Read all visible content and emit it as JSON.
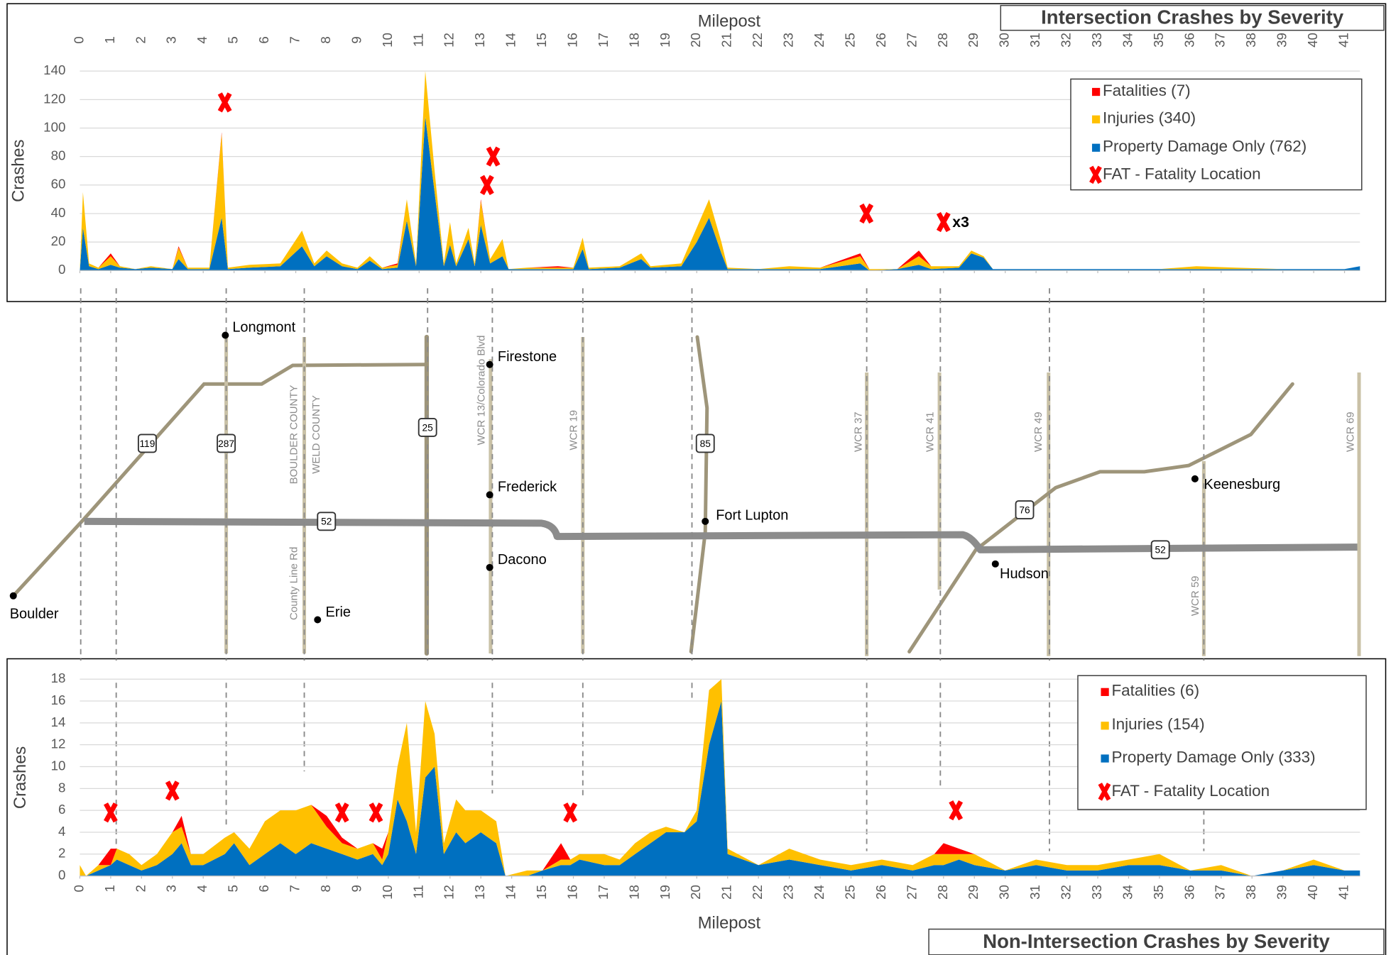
{
  "chart_data": [
    {
      "type": "area",
      "title": "Intersection Crashes by Severity",
      "x_label": "Milepost",
      "y_label": "Crashes",
      "x": [
        0,
        0.1,
        0.3,
        0.6,
        1.0,
        1.3,
        1.8,
        2.3,
        3.0,
        3.2,
        3.5,
        4.2,
        4.6,
        4.8,
        5.5,
        6.5,
        7.2,
        7.6,
        8.0,
        8.5,
        9.0,
        9.4,
        9.8,
        10.3,
        10.6,
        10.9,
        11.2,
        11.5,
        11.8,
        12.0,
        12.2,
        12.6,
        12.8,
        13.0,
        13.3,
        13.7,
        13.9,
        14.5,
        15.5,
        16.0,
        16.3,
        16.5,
        17.5,
        18.2,
        18.5,
        19.5,
        20.0,
        20.4,
        20.8,
        21.0,
        22,
        23,
        24,
        25.3,
        25.6,
        26.5,
        27.2,
        27.6,
        28.5,
        28.9,
        29.3,
        29.6,
        31,
        33,
        35,
        36.2,
        37.5,
        39,
        41,
        41.5
      ],
      "series": [
        {
          "name": "Fatalities (7)",
          "color": "#ff0000",
          "values": [
            0,
            0,
            0,
            0,
            2,
            0,
            0,
            0,
            0,
            1,
            0,
            0,
            1,
            0,
            0,
            0,
            0,
            0,
            0,
            0,
            0,
            0,
            0,
            1,
            0,
            0,
            0,
            0,
            0,
            0,
            0,
            0,
            0,
            1,
            0,
            0,
            0,
            0,
            1,
            0,
            0,
            0,
            0,
            0,
            0,
            0,
            0,
            0,
            0,
            0,
            0,
            0,
            0,
            2,
            0,
            0,
            4,
            0,
            0,
            0,
            0,
            0,
            0,
            0,
            0,
            0,
            0,
            0,
            0,
            0
          ]
        },
        {
          "name": "Injuries (340)",
          "color": "#ffc000",
          "values": [
            0,
            25,
            2,
            1,
            6,
            1,
            0,
            1,
            0,
            8,
            1,
            1,
            59,
            1,
            2,
            2,
            11,
            2,
            4,
            2,
            1,
            3,
            1,
            2,
            15,
            2,
            32,
            15,
            2,
            16,
            2,
            8,
            2,
            17,
            3,
            12,
            0,
            1,
            1,
            1,
            8,
            1,
            1,
            4,
            1,
            2,
            10,
            13,
            8,
            1,
            0,
            2,
            1,
            5,
            1,
            0,
            6,
            2,
            1,
            2,
            1,
            0,
            0,
            0,
            0,
            2,
            1,
            0,
            0,
            0
          ]
        },
        {
          "name": "Property Damage Only (762)",
          "color": "#0070c0",
          "values": [
            0,
            30,
            3,
            1,
            4,
            2,
            1,
            2,
            1,
            8,
            1,
            1,
            37,
            1,
            2,
            3,
            17,
            3,
            10,
            3,
            1,
            7,
            1,
            2,
            35,
            3,
            108,
            55,
            3,
            18,
            3,
            22,
            3,
            32,
            5,
            10,
            1,
            1,
            1,
            1,
            15,
            1,
            2,
            8,
            2,
            3,
            20,
            37,
            12,
            1,
            1,
            1,
            1,
            5,
            0,
            1,
            4,
            1,
            2,
            12,
            9,
            1,
            1,
            1,
            1,
            1,
            1,
            1,
            1,
            3
          ]
        }
      ],
      "marker_legend": "FAT - Fatality Location",
      "marker_color": "#ff0000",
      "fatality_markers": [
        {
          "x": 4.7,
          "y": 118
        },
        {
          "x": 13.2,
          "y": 60
        },
        {
          "x": 13.4,
          "y": 80
        },
        {
          "x": 25.5,
          "y": 40
        },
        {
          "x": 28.0,
          "y": 34
        }
      ],
      "annotation": "x3",
      "xlim": [
        0,
        41.5
      ],
      "xticks": [
        0,
        1,
        2,
        3,
        4,
        5,
        6,
        7,
        8,
        9,
        10,
        11,
        12,
        13,
        14,
        15,
        16,
        17,
        18,
        19,
        20,
        21,
        22,
        23,
        24,
        25,
        26,
        27,
        28,
        29,
        30,
        31,
        32,
        33,
        34,
        35,
        36,
        37,
        38,
        39,
        40,
        41
      ],
      "ylim": [
        0,
        140
      ],
      "yticks": [
        0,
        20,
        40,
        60,
        80,
        100,
        120,
        140
      ],
      "grid": true,
      "legend": "upper right"
    },
    {
      "type": "area",
      "title": "Non-Intersection Crashes by Severity",
      "x_label": "Milepost",
      "y_label": "Crashes",
      "x": [
        0,
        0.2,
        0.6,
        1.0,
        1.2,
        1.6,
        2.0,
        2.5,
        3.0,
        3.3,
        3.6,
        4.0,
        4.7,
        5.0,
        5.5,
        6.0,
        6.5,
        7.0,
        7.5,
        8.0,
        8.5,
        9.0,
        9.5,
        9.8,
        10.0,
        10.3,
        10.6,
        10.9,
        11.2,
        11.5,
        11.8,
        12.2,
        12.5,
        13.0,
        13.5,
        13.8,
        14.5,
        15.0,
        15.6,
        15.9,
        16.2,
        17.0,
        17.5,
        18.0,
        18.5,
        19.0,
        19.6,
        20.0,
        20.4,
        20.8,
        21.0,
        22.0,
        23.0,
        24.0,
        25.0,
        26.0,
        27.0,
        27.7,
        28.0,
        28.5,
        29.0,
        30.0,
        31.0,
        32.0,
        33.0,
        34.0,
        35.0,
        36.0,
        37.0,
        38.0,
        39.0,
        40.0,
        41.0,
        41.5
      ],
      "series": [
        {
          "name": "Fatalities (6)",
          "color": "#ff0000",
          "values": [
            0,
            0,
            0,
            1.5,
            0,
            0,
            0,
            0,
            0,
            1,
            0,
            0,
            0,
            0,
            0,
            0,
            0,
            0,
            0,
            1,
            0.5,
            0,
            0,
            1,
            0,
            0,
            0,
            0,
            0,
            0,
            0,
            0,
            0,
            0,
            0,
            0,
            0,
            0,
            1.5,
            0,
            0,
            0,
            0,
            0,
            0,
            0,
            0,
            0,
            0,
            0,
            0,
            0,
            0,
            0,
            0,
            0,
            0,
            0,
            1,
            0.5,
            0,
            0,
            0,
            0,
            0,
            0,
            0,
            0,
            0,
            0,
            0,
            0,
            0,
            0
          ]
        },
        {
          "name": "Injuries (154)",
          "color": "#ffc000",
          "values": [
            1,
            0,
            0.5,
            0,
            1,
            1,
            0.5,
            1,
            2,
            1.5,
            1,
            1,
            1.5,
            1,
            1.5,
            3,
            3,
            4,
            3.5,
            2,
            1,
            1,
            1,
            0.5,
            2,
            3,
            9,
            2,
            7,
            3,
            1,
            3,
            3,
            2,
            2,
            0,
            0.5,
            0,
            0.5,
            0.5,
            0.5,
            1,
            0.5,
            1,
            1,
            0.5,
            0,
            1,
            5,
            2,
            0.5,
            0,
            1,
            0.5,
            0.5,
            0.5,
            0.5,
            1,
            1,
            0.5,
            1,
            0,
            0.5,
            0.5,
            0.5,
            0.5,
            1,
            0,
            0.5,
            0,
            0,
            0.5,
            0,
            0
          ]
        },
        {
          "name": "Property Damage Only (333)",
          "color": "#0070c0",
          "values": [
            0,
            0,
            0.5,
            1,
            1.5,
            1,
            0.5,
            1,
            2,
            3,
            1,
            1,
            2,
            3,
            1,
            2,
            3,
            2,
            3,
            2.5,
            2,
            1.5,
            2,
            1,
            2,
            7,
            5,
            2,
            9,
            10,
            2,
            4,
            3,
            4,
            3,
            0,
            0,
            0.5,
            1,
            1,
            1.5,
            1,
            1,
            2,
            3,
            4,
            4,
            5,
            12,
            16,
            2,
            1,
            1.5,
            1,
            0.5,
            1,
            0.5,
            1,
            1,
            1.5,
            1,
            0.5,
            1,
            0.5,
            0.5,
            1,
            1,
            0.5,
            0.5,
            0,
            0.5,
            1,
            0.5,
            0.5
          ]
        }
      ],
      "marker_legend": "FAT - Fatality Location",
      "marker_color": "#ff0000",
      "fatality_markers": [
        {
          "x": 1.0,
          "y": 5.8
        },
        {
          "x": 3.0,
          "y": 7.8
        },
        {
          "x": 8.5,
          "y": 5.8
        },
        {
          "x": 9.6,
          "y": 5.8
        },
        {
          "x": 15.9,
          "y": 5.8
        },
        {
          "x": 28.4,
          "y": 6
        }
      ],
      "xlim": [
        0,
        41.5
      ],
      "xticks": [
        0,
        1,
        2,
        3,
        4,
        5,
        6,
        7,
        8,
        9,
        10,
        11,
        12,
        13,
        14,
        15,
        16,
        17,
        18,
        19,
        20,
        21,
        22,
        23,
        24,
        25,
        26,
        27,
        28,
        29,
        30,
        31,
        32,
        33,
        34,
        35,
        36,
        37,
        38,
        39,
        40,
        41
      ],
      "ylim": [
        0,
        18
      ],
      "yticks": [
        0,
        2,
        4,
        6,
        8,
        10,
        12,
        14,
        16,
        18
      ],
      "grid": true,
      "legend": "upper right"
    }
  ],
  "map": {
    "places": [
      "Longmont",
      "Firestone",
      "Frederick",
      "Dacono",
      "Erie",
      "Fort Lupton",
      "Hudson",
      "Keenesburg",
      "Boulder"
    ],
    "road_labels": [
      "BOULDER COUNTY",
      "WELD COUNTY",
      "County Line Rd",
      "WCR 13/Colorado Blvd",
      "WCR 19",
      "WCR 37",
      "WCR 41",
      "WCR 49",
      "WCR 59",
      "WCR 69"
    ],
    "shields": [
      "119",
      "287",
      "25",
      "85",
      "52",
      "52",
      "76"
    ]
  }
}
